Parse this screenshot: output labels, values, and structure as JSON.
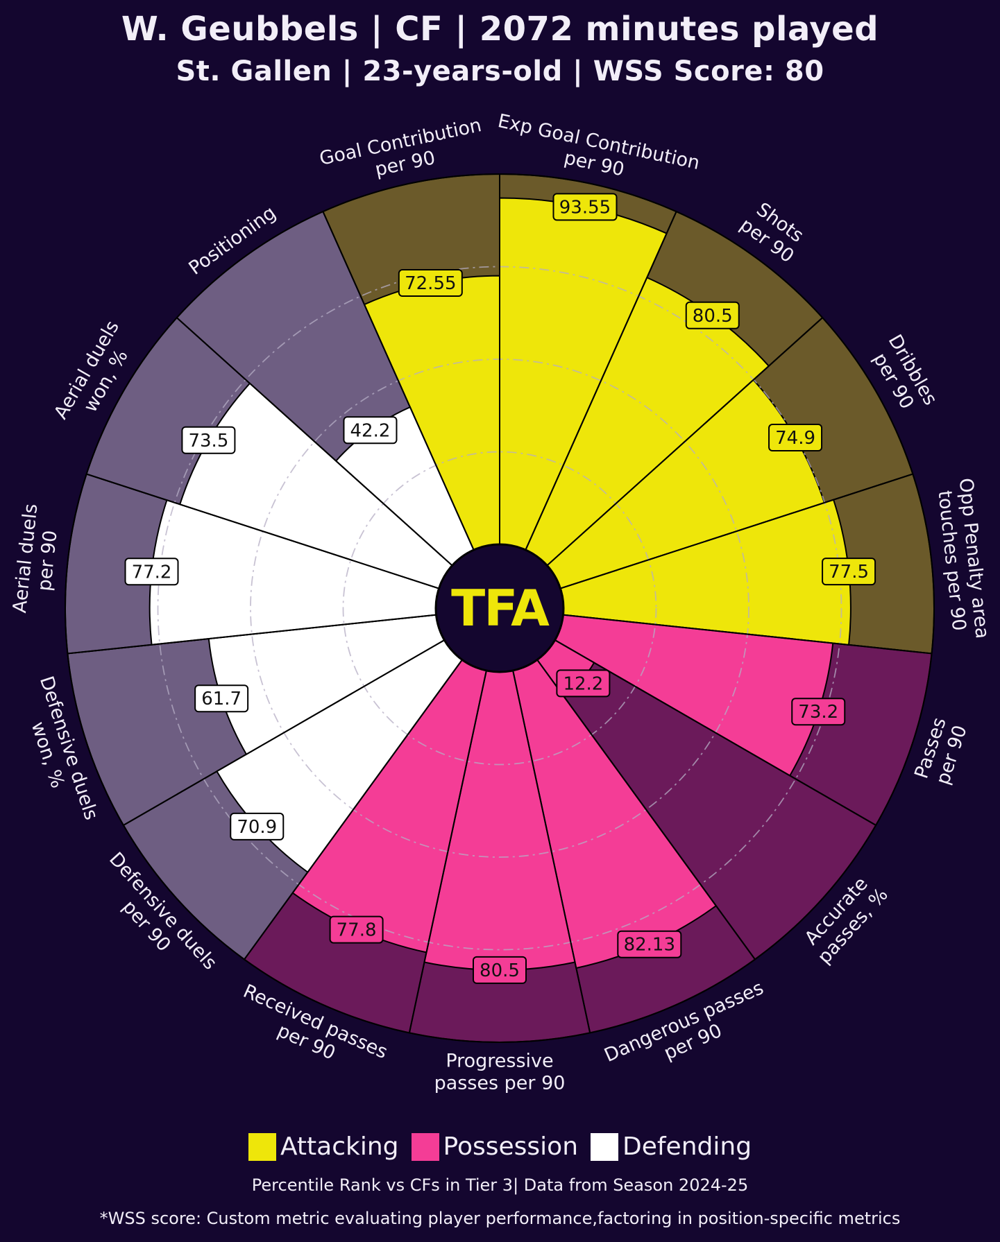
{
  "header": {
    "title": "W. Geubbels | CF | 2072 minutes played",
    "subtitle": "St. Gallen | 23-years-old | WSS Score: 80"
  },
  "center_logo": "TFA",
  "colors": {
    "background": "#14062f",
    "attacking": "#eee60a",
    "attacking_bg": "#6b5a2a",
    "possession": "#f43d96",
    "possession_bg": "#6b1a5a",
    "defending": "#ffffff",
    "defending_bg": "#6e5e82",
    "label_text": "#f2eef8"
  },
  "legend": [
    {
      "label": "Attacking",
      "color": "#eee60a"
    },
    {
      "label": "Possession",
      "color": "#f43d96"
    },
    {
      "label": "Defending",
      "color": "#ffffff"
    }
  ],
  "footer": {
    "note": "Percentile Rank vs CFs in Tier 3| Data from Season 2024-25",
    "wss_note": "*WSS score: Custom metric evaluating player performance,factoring in position-specific metrics"
  },
  "chart_data": {
    "type": "radial-bar",
    "title": "W. Geubbels | CF | 2072 minutes played",
    "range": [
      0,
      100
    ],
    "reference_rings": [
      25,
      50,
      75
    ],
    "categories": [
      {
        "label": [
          "Goal Contribution",
          "per 90"
        ],
        "value": 72.55,
        "display": "72.55",
        "group": "Attacking"
      },
      {
        "label": [
          "Exp Goal Contribution",
          "per 90"
        ],
        "value": 93.55,
        "display": "93.55",
        "group": "Attacking"
      },
      {
        "label": [
          "Shots",
          "per 90"
        ],
        "value": 80.5,
        "display": "80.5",
        "group": "Attacking"
      },
      {
        "label": [
          "Dribbles",
          "per 90"
        ],
        "value": 74.9,
        "display": "74.9",
        "group": "Attacking"
      },
      {
        "label": [
          "Opp Penalty area",
          "touches per 90"
        ],
        "value": 77.5,
        "display": "77.5",
        "group": "Attacking"
      },
      {
        "label": [
          "Passes",
          "per 90"
        ],
        "value": 73.2,
        "display": "73.2",
        "group": "Possession"
      },
      {
        "label": [
          "Accurate",
          "passes, %"
        ],
        "value": 12.2,
        "display": "12.2",
        "group": "Possession"
      },
      {
        "label": [
          "Dangerous passes",
          "per 90"
        ],
        "value": 82.13,
        "display": "82.13",
        "group": "Possession"
      },
      {
        "label": [
          "Progressive",
          "passes per 90"
        ],
        "value": 80.5,
        "display": "80.5",
        "group": "Possession"
      },
      {
        "label": [
          "Received passes",
          "per 90"
        ],
        "value": 77.8,
        "display": "77.8",
        "group": "Possession"
      },
      {
        "label": [
          "Defensive duels",
          "per 90"
        ],
        "value": 70.9,
        "display": "70.9",
        "group": "Defending"
      },
      {
        "label": [
          "Defensive duels",
          "won, %"
        ],
        "value": 61.7,
        "display": "61.7",
        "group": "Defending"
      },
      {
        "label": [
          "Aerial duels",
          "per 90"
        ],
        "value": 77.2,
        "display": "77.2",
        "group": "Defending"
      },
      {
        "label": [
          "Aerial duels",
          "won, %"
        ],
        "value": 73.5,
        "display": "73.5",
        "group": "Defending"
      },
      {
        "label": [
          "Positioning"
        ],
        "value": 42.2,
        "display": "42.2",
        "group": "Defending"
      }
    ]
  }
}
